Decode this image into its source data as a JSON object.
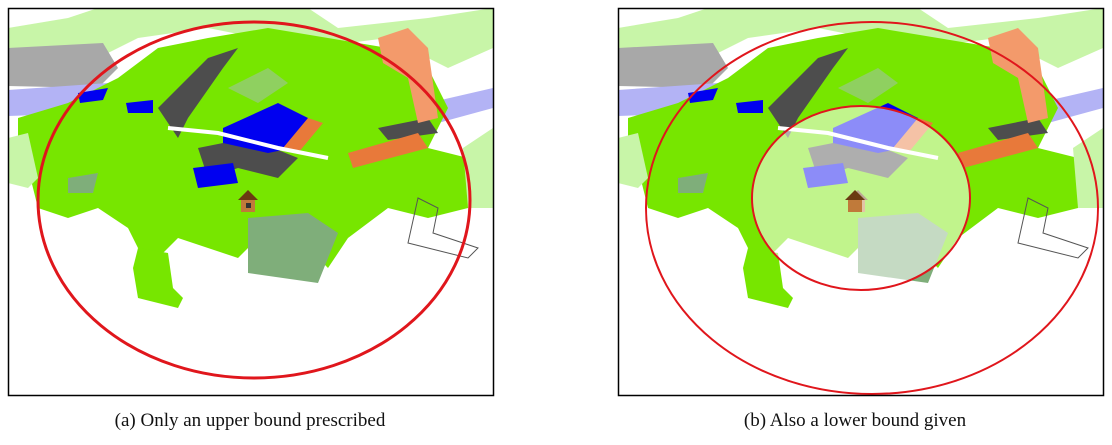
{
  "captions": [
    "(a) Only an upper bound prescribed",
    "(b) Also a lower bound given"
  ]
}
